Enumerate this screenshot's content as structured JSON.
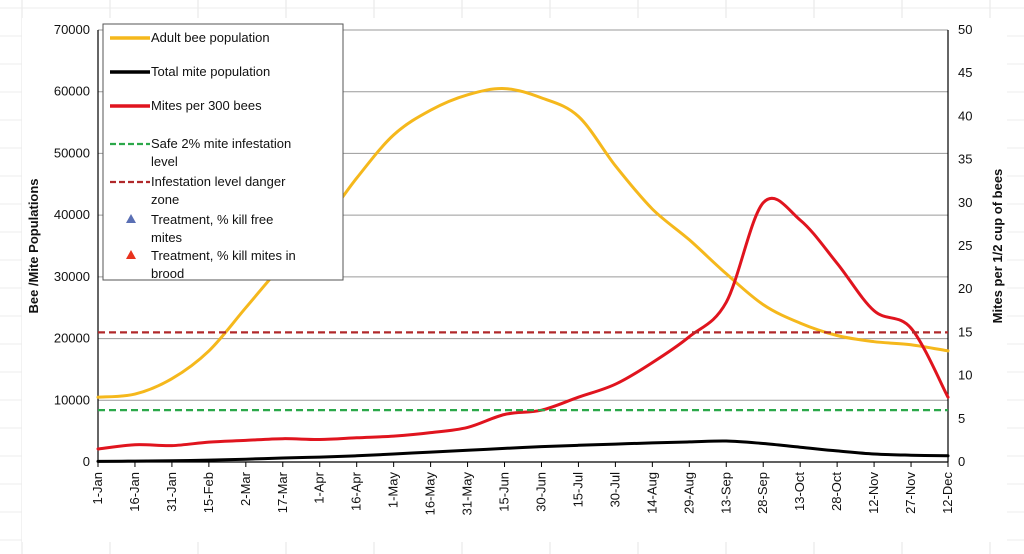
{
  "chart_data": {
    "type": "line",
    "x_categories": [
      "1-Jan",
      "16-Jan",
      "31-Jan",
      "15-Feb",
      "2-Mar",
      "17-Mar",
      "1-Apr",
      "16-Apr",
      "1-May",
      "16-May",
      "31-May",
      "15-Jun",
      "30-Jun",
      "15-Jul",
      "30-Jul",
      "14-Aug",
      "29-Aug",
      "13-Sep",
      "28-Sep",
      "13-Oct",
      "28-Oct",
      "12-Nov",
      "27-Nov",
      "12-Dec"
    ],
    "y_left": {
      "label": "Bee /Mite Populations",
      "min": 0,
      "max": 70000,
      "ticks": [
        "0",
        "10000",
        "20000",
        "30000",
        "40000",
        "50000",
        "60000",
        "70000"
      ]
    },
    "y_right": {
      "label": "Mites per 1/2 cup of bees",
      "min": 0,
      "max": 50,
      "ticks": [
        "0",
        "5",
        "10",
        "15",
        "20",
        "25",
        "30",
        "35",
        "40",
        "45",
        "50"
      ]
    },
    "series": [
      {
        "name": "Adult bee population",
        "axis": "left",
        "color": "#f5b81c",
        "values": [
          10500,
          11000,
          13500,
          18000,
          25000,
          32000,
          38000,
          46000,
          53000,
          57000,
          59500,
          60500,
          59000,
          56000,
          48000,
          41000,
          36000,
          30500,
          25500,
          22500,
          20500,
          19500,
          19000,
          18000
        ]
      },
      {
        "name": "Total mite population",
        "axis": "left",
        "color": "#000000",
        "values": [
          100,
          150,
          200,
          300,
          450,
          650,
          800,
          1000,
          1300,
          1600,
          1900,
          2200,
          2500,
          2700,
          2900,
          3100,
          3250,
          3400,
          3000,
          2400,
          1800,
          1300,
          1100,
          1000
        ]
      },
      {
        "name": "Mites per 300 bees",
        "axis": "right",
        "color": "#e0141e",
        "values": [
          1.5,
          2.0,
          1.9,
          2.3,
          2.5,
          2.7,
          2.6,
          2.8,
          3.0,
          3.4,
          4.0,
          5.5,
          6.0,
          7.5,
          9.0,
          11.5,
          14.5,
          18.5,
          30.0,
          28.0,
          23.0,
          17.5,
          15.5,
          7.5
        ]
      },
      {
        "name": "Safe 2% mite infestation level",
        "axis": "right",
        "color": "#2ba84a",
        "style": "dashed",
        "value": 6
      },
      {
        "name": "Infestation level danger zone",
        "axis": "right",
        "color": "#b0282a",
        "style": "dashed",
        "value": 15
      },
      {
        "name": "Treatment, % kill free mites",
        "axis": "right",
        "color": "#5a6fb4",
        "marker": "triangle",
        "values": []
      },
      {
        "name": "Treatment, % kill mites in brood",
        "axis": "right",
        "color": "#e8321e",
        "marker": "triangle",
        "values": []
      }
    ],
    "legend": {
      "placement": "top-left",
      "entries": [
        {
          "lines": [
            "Adult bee population"
          ]
        },
        {
          "lines": [
            "Total mite population"
          ]
        },
        {
          "lines": [
            "Mites per 300 bees"
          ]
        },
        {
          "lines": [
            "Safe 2% mite infestation",
            "level"
          ]
        },
        {
          "lines": [
            "Infestation level danger",
            "zone"
          ]
        },
        {
          "lines": [
            "Treatment, % kill free",
            "mites"
          ]
        },
        {
          "lines": [
            "Treatment, % kill mites in",
            "brood"
          ]
        }
      ]
    },
    "grid": true
  }
}
